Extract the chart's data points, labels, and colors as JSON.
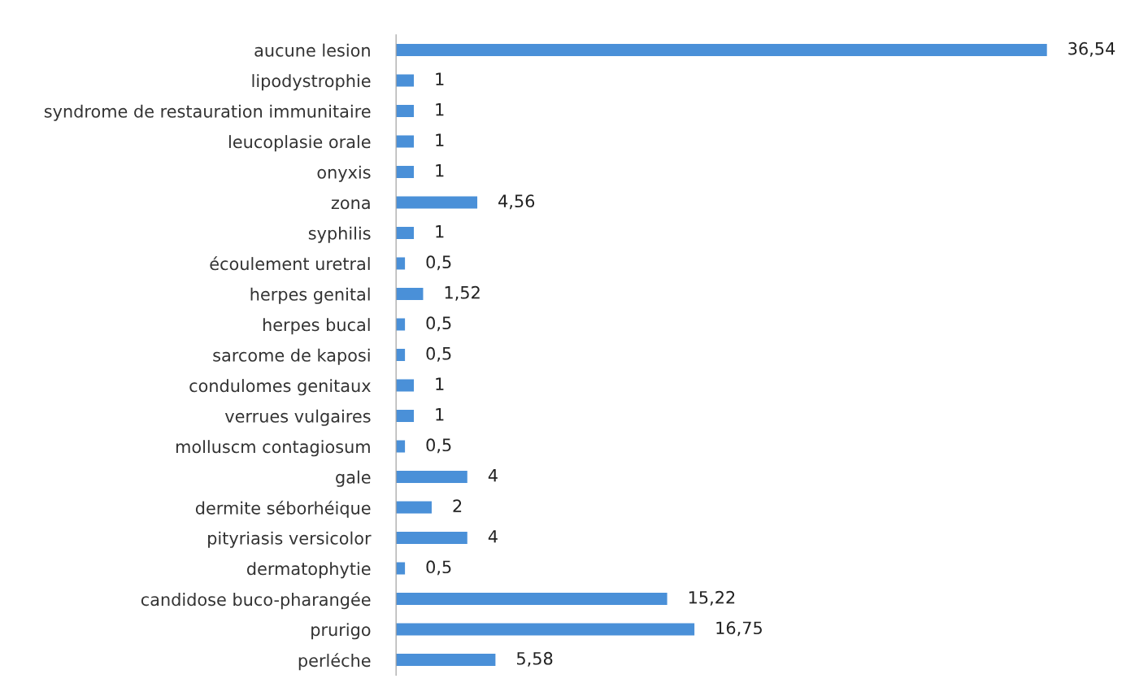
{
  "chart_data": {
    "type": "bar",
    "orientation": "horizontal",
    "categories": [
      "aucune lesion",
      "lipodystrophie",
      "syndrome de restauration immunitaire",
      "leucoplasie orale",
      "onyxis",
      "zona",
      "syphilis",
      "écoulement uretral",
      "herpes genital",
      "herpes bucal",
      "sarcome de kaposi",
      "condulomes genitaux",
      "verrues vulgaires",
      "molluscm contagiosum",
      "gale",
      "dermite séborhéique",
      "pityriasis versicolor",
      "dermatophytie",
      "candidose buco-pharangée",
      "prurigo",
      "perléche"
    ],
    "values": [
      36.54,
      1,
      1,
      1,
      1,
      4.56,
      1,
      0.5,
      1.52,
      0.5,
      0.5,
      1,
      1,
      0.5,
      4,
      2,
      4,
      0.5,
      15.22,
      16.75,
      5.58
    ],
    "value_labels": [
      "36,54",
      "1",
      "1",
      "1",
      "1",
      "4,56",
      "1",
      "0,5",
      "1,52",
      "0,5",
      "0,5",
      "1",
      "1",
      "0,5",
      "4",
      "2",
      "4",
      "0,5",
      "15,22",
      "16,75",
      "5,58"
    ],
    "color": "#4a90d8",
    "tick_labels": "y",
    "grid": false,
    "legend": false
  }
}
